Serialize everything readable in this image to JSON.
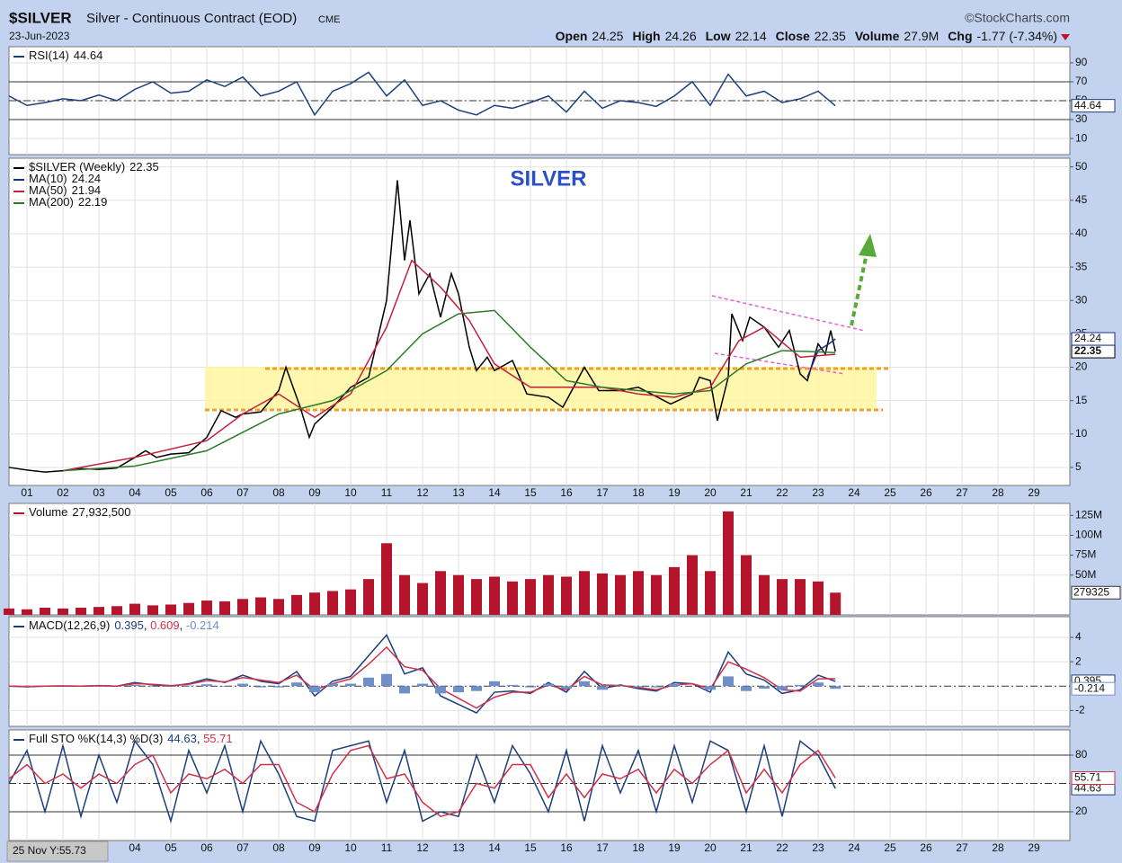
{
  "header": {
    "symbol": "$SILVER",
    "name": "Silver - Continuous Contract (EOD)",
    "exchange": "CME",
    "date": "23-Jun-2023",
    "source": "©StockCharts.com",
    "quote": [
      {
        "label": "Open",
        "value": "24.25"
      },
      {
        "label": "High",
        "value": "24.26"
      },
      {
        "label": "Low",
        "value": "22.14"
      },
      {
        "label": "Close",
        "value": "22.35"
      },
      {
        "label": "Volume",
        "value": "27.9M"
      },
      {
        "label": "Chg",
        "value": "-1.77 (-7.34%)"
      }
    ]
  },
  "tooltip": "25 Nov Y:55.73",
  "chart_data": [
    {
      "type": "line",
      "ylim": [
        -7,
        107
      ],
      "yticks": [
        10,
        30,
        50,
        70,
        90
      ],
      "ref_lines": [
        30,
        70
      ],
      "mid_line": 50,
      "x": [
        2000.5,
        2001,
        2001.5,
        2002,
        2002.5,
        2003,
        2003.5,
        2004,
        2004.5,
        2005,
        2005.5,
        2006,
        2006.5,
        2007,
        2007.5,
        2008,
        2008.5,
        2009,
        2009.5,
        2010,
        2010.5,
        2011,
        2011.5,
        2012,
        2012.5,
        2013,
        2013.5,
        2014,
        2014.5,
        2015,
        2015.5,
        2016,
        2016.5,
        2017,
        2017.5,
        2018,
        2018.5,
        2019,
        2019.5,
        2020,
        2020.5,
        2021,
        2021.5,
        2022,
        2022.5,
        2023,
        2023.48
      ],
      "series": [
        {
          "name": "RSI(14)",
          "color": "#1c3f7c",
          "tag": true,
          "values": [
            55,
            45,
            48,
            52,
            50,
            56,
            50,
            62,
            70,
            58,
            60,
            72,
            65,
            75,
            55,
            60,
            70,
            35,
            60,
            68,
            80,
            55,
            72,
            45,
            50,
            40,
            35,
            45,
            42,
            48,
            55,
            38,
            60,
            42,
            50,
            48,
            44,
            55,
            70,
            45,
            78,
            55,
            60,
            48,
            52,
            60,
            44.64
          ]
        }
      ]
    },
    {
      "type": "line",
      "title": "SILVER",
      "xlim": [
        2000.5,
        2030
      ],
      "ylim": [
        2.3,
        51.3
      ],
      "yticks": [
        5,
        10,
        15,
        20,
        25,
        30,
        35,
        40,
        45,
        50
      ],
      "xticks": [
        {
          "value": 2001,
          "label": "01"
        },
        {
          "value": 2002,
          "label": "02"
        },
        {
          "value": 2003,
          "label": "03"
        },
        {
          "value": 2004,
          "label": "04"
        },
        {
          "value": 2005,
          "label": "05"
        },
        {
          "value": 2006,
          "label": "06"
        },
        {
          "value": 2007,
          "label": "07"
        },
        {
          "value": 2008,
          "label": "08"
        },
        {
          "value": 2009,
          "label": "09"
        },
        {
          "value": 2010,
          "label": "10"
        },
        {
          "value": 2011,
          "label": "11"
        },
        {
          "value": 2012,
          "label": "12"
        },
        {
          "value": 2013,
          "label": "13"
        },
        {
          "value": 2014,
          "label": "14"
        },
        {
          "value": 2015,
          "label": "15"
        },
        {
          "value": 2016,
          "label": "16"
        },
        {
          "value": 2017,
          "label": "17"
        },
        {
          "value": 2018,
          "label": "18"
        },
        {
          "value": 2019,
          "label": "19"
        },
        {
          "value": 2020,
          "label": "20"
        },
        {
          "value": 2021,
          "label": "21"
        },
        {
          "value": 2022,
          "label": "22"
        },
        {
          "value": 2023,
          "label": "23"
        },
        {
          "value": 2024,
          "label": "24"
        },
        {
          "value": 2025,
          "label": "25"
        },
        {
          "value": 2026,
          "label": "26"
        },
        {
          "value": 2027,
          "label": "27"
        },
        {
          "value": 2028,
          "label": "28"
        },
        {
          "value": 2029,
          "label": "29"
        }
      ],
      "series": [
        {
          "name": "$SILVER (Weekly)",
          "color": "#000000",
          "tag": true,
          "bold": true,
          "x": [
            2000.5,
            2001,
            2001.5,
            2002,
            2002.5,
            2003,
            2003.5,
            2004,
            2004.3,
            2004.6,
            2005,
            2005.5,
            2006,
            2006.4,
            2006.8,
            2007,
            2007.5,
            2008,
            2008.2,
            2008.6,
            2008.85,
            2009,
            2009.5,
            2010,
            2010.5,
            2011,
            2011.3,
            2011.5,
            2011.65,
            2011.9,
            2012.2,
            2012.5,
            2012.8,
            2013,
            2013.3,
            2013.5,
            2013.8,
            2014,
            2014.5,
            2014.9,
            2015.5,
            2015.9,
            2016.5,
            2016.9,
            2017.5,
            2018,
            2018.9,
            2019.5,
            2019.7,
            2020,
            2020.2,
            2020.5,
            2020.6,
            2020.9,
            2021.1,
            2021.5,
            2021.9,
            2022.2,
            2022.5,
            2022.7,
            2023,
            2023.2,
            2023.35,
            2023.48
          ],
          "values": [
            5.0,
            4.6,
            4.3,
            4.5,
            4.8,
            4.7,
            4.9,
            6.5,
            7.5,
            6.5,
            7.0,
            7.2,
            9.5,
            13.5,
            12.5,
            13.0,
            13.3,
            16.5,
            20.0,
            14.0,
            9.5,
            11.5,
            14.0,
            17.0,
            18.5,
            30.0,
            48.0,
            36.0,
            42.0,
            31.0,
            34.0,
            27.5,
            34.0,
            31.0,
            23.0,
            19.5,
            21.5,
            19.5,
            21.0,
            16.0,
            15.5,
            14.0,
            20.0,
            16.5,
            16.5,
            17.0,
            14.5,
            16.0,
            18.5,
            18.0,
            12.0,
            18.5,
            28.0,
            24.0,
            27.5,
            26.0,
            23.0,
            25.5,
            19.0,
            18.0,
            23.5,
            22.0,
            25.5,
            22.35
          ]
        },
        {
          "name": "MA(10)",
          "color": "#1a2d8c",
          "tag": true,
          "x": [
            2022.7,
            2023,
            2023.3,
            2023.48
          ],
          "values": [
            18.5,
            22.5,
            23.5,
            24.24
          ]
        },
        {
          "name": "MA(50)",
          "color": "#c4203c",
          "x": [
            2002,
            2004,
            2006,
            2007,
            2008,
            2009,
            2010,
            2011,
            2011.7,
            2012.5,
            2013.3,
            2014,
            2015,
            2016,
            2017,
            2018,
            2019,
            2020,
            2020.8,
            2021.5,
            2022.5,
            2023.48
          ],
          "values": [
            4.5,
            6.5,
            9.0,
            13.0,
            16.0,
            12.5,
            16.0,
            26,
            36,
            32,
            27,
            20.5,
            17,
            17,
            17,
            16,
            15.5,
            17,
            24,
            26,
            21.5,
            21.94
          ]
        },
        {
          "name": "MA(200)",
          "color": "#2e7a2a",
          "x": [
            2002,
            2004,
            2006,
            2008,
            2009.5,
            2011,
            2012,
            2013,
            2014,
            2015,
            2016,
            2017,
            2019,
            2020,
            2021,
            2022,
            2023.48
          ],
          "values": [
            4.5,
            5.2,
            7.5,
            13.0,
            15.0,
            19.5,
            25.0,
            28.0,
            28.5,
            23.0,
            18.0,
            17.0,
            16.0,
            16.5,
            20.5,
            22.5,
            22.19
          ]
        }
      ]
    },
    {
      "type": "bar",
      "ylim": [
        0,
        140000000
      ],
      "tag_label": "279325",
      "yticks": [
        {
          "value": 50000000,
          "label": "50M"
        },
        {
          "value": 75000000,
          "label": "75M"
        },
        {
          "value": 100000000,
          "label": "100M"
        },
        {
          "value": 125000000,
          "label": "125M"
        }
      ],
      "x": [
        2000.5,
        2001,
        2001.5,
        2002,
        2002.5,
        2003,
        2003.5,
        2004,
        2004.5,
        2005,
        2005.5,
        2006,
        2006.5,
        2007,
        2007.5,
        2008,
        2008.5,
        2009,
        2009.5,
        2010,
        2010.5,
        2011,
        2011.5,
        2012,
        2012.5,
        2013,
        2013.5,
        2014,
        2014.5,
        2015,
        2015.5,
        2016,
        2016.5,
        2017,
        2017.5,
        2018,
        2018.5,
        2019,
        2019.5,
        2020,
        2020.5,
        2021,
        2021.5,
        2022,
        2022.5,
        2023,
        2023.48
      ],
      "series": [
        {
          "name": "Volume",
          "color": "#b5142d",
          "current_label": "27,932,500",
          "values": [
            8000000,
            7000000,
            9000000,
            8000000,
            9000000,
            10000000,
            11000000,
            14000000,
            12000000,
            13000000,
            15000000,
            18000000,
            17000000,
            20000000,
            22000000,
            20000000,
            25000000,
            28000000,
            30000000,
            32000000,
            45000000,
            90000000,
            50000000,
            40000000,
            55000000,
            50000000,
            45000000,
            48000000,
            42000000,
            45000000,
            50000000,
            48000000,
            55000000,
            52000000,
            50000000,
            55000000,
            50000000,
            60000000,
            75000000,
            55000000,
            130000000,
            75000000,
            50000000,
            45000000,
            45000000,
            42000000,
            27932500
          ]
        }
      ]
    },
    {
      "type": "line",
      "label": "MACD(12,26,9)",
      "separator": ", ",
      "ylim": [
        -3.3,
        5.7
      ],
      "yticks": [
        -2,
        2,
        4
      ],
      "mid_line": 0,
      "x": [
        2000.5,
        2001,
        2001.5,
        2002,
        2002.5,
        2003,
        2003.5,
        2004,
        2004.5,
        2005,
        2005.5,
        2006,
        2006.5,
        2007,
        2007.5,
        2008,
        2008.5,
        2009,
        2009.5,
        2010,
        2010.5,
        2011,
        2011.5,
        2012,
        2012.5,
        2013,
        2013.5,
        2014,
        2014.5,
        2015,
        2015.5,
        2016,
        2016.5,
        2017,
        2017.5,
        2018,
        2018.5,
        2019,
        2019.5,
        2020,
        2020.5,
        2021,
        2021.5,
        2022,
        2022.5,
        2023,
        2023.48
      ],
      "series": [
        {
          "color": "#1c3f7c",
          "tag": true,
          "values": [
            0,
            -0.05,
            0,
            0.02,
            0,
            0.05,
            0,
            0.3,
            0.1,
            0,
            0.2,
            0.6,
            0.3,
            0.9,
            0.4,
            0.2,
            1.2,
            -0.8,
            0.4,
            0.8,
            2.5,
            4.2,
            1.0,
            1.5,
            -0.8,
            -1.5,
            -2.2,
            -0.5,
            -0.4,
            -0.6,
            0.3,
            -0.5,
            1.2,
            -0.2,
            0.1,
            -0.2,
            -0.4,
            0.3,
            0.2,
            -0.5,
            2.8,
            1.0,
            0.5,
            -0.6,
            -0.3,
            0.9,
            0.395
          ]
        },
        {
          "color": "#d0304a",
          "values": [
            0,
            -0.03,
            0,
            0.01,
            0,
            0.03,
            0,
            0.2,
            0.15,
            0.05,
            0.15,
            0.45,
            0.35,
            0.7,
            0.5,
            0.3,
            0.9,
            -0.3,
            0.2,
            0.6,
            1.8,
            3.2,
            1.6,
            1.3,
            -0.2,
            -1.0,
            -1.8,
            -0.9,
            -0.5,
            -0.5,
            0.1,
            -0.3,
            0.8,
            0.1,
            0.05,
            -0.1,
            -0.3,
            0.1,
            0.2,
            -0.2,
            2.0,
            1.4,
            0.7,
            -0.3,
            -0.4,
            0.6,
            0.609
          ]
        },
        {
          "color": "#6f8fc8",
          "style": "bar",
          "tag": true,
          "values": [
            0,
            -0.02,
            0,
            0.01,
            0,
            0.02,
            0,
            0.1,
            -0.05,
            -0.05,
            0.05,
            0.15,
            -0.05,
            0.2,
            -0.1,
            -0.1,
            0.3,
            -0.5,
            0.2,
            0.2,
            0.7,
            1.0,
            -0.6,
            0.2,
            -0.6,
            -0.5,
            -0.4,
            0.4,
            0.1,
            -0.1,
            0.2,
            -0.2,
            0.4,
            -0.3,
            0.05,
            -0.1,
            -0.1,
            0.2,
            0,
            -0.3,
            0.8,
            -0.4,
            -0.2,
            -0.3,
            0.1,
            0.3,
            -0.214
          ]
        }
      ]
    },
    {
      "type": "line",
      "label": "Full STO %K(14,3) %D(3)",
      "separator": ", ",
      "ylim": [
        -10.5,
        106.7
      ],
      "yticks": [
        20,
        80
      ],
      "ref_lines": [
        20,
        80
      ],
      "mid_line": 50,
      "x": [
        2000.5,
        2001,
        2001.5,
        2002,
        2002.5,
        2003,
        2003.5,
        2004,
        2004.5,
        2005,
        2005.5,
        2006,
        2006.5,
        2007,
        2007.5,
        2008,
        2008.5,
        2009,
        2009.5,
        2010,
        2010.5,
        2011,
        2011.5,
        2012,
        2012.5,
        2013,
        2013.5,
        2014,
        2014.5,
        2015,
        2015.5,
        2016,
        2016.5,
        2017,
        2017.5,
        2018,
        2018.5,
        2019,
        2019.5,
        2020,
        2020.5,
        2021,
        2021.5,
        2022,
        2022.5,
        2023,
        2023.48
      ],
      "series": [
        {
          "color": "#1c3f7c",
          "tag": true,
          "values": [
            50,
            85,
            20,
            90,
            15,
            80,
            30,
            95,
            70,
            10,
            85,
            40,
            90,
            20,
            95,
            60,
            15,
            10,
            85,
            90,
            95,
            30,
            85,
            10,
            20,
            15,
            80,
            30,
            90,
            60,
            20,
            85,
            10,
            90,
            40,
            85,
            20,
            90,
            30,
            95,
            85,
            20,
            90,
            15,
            95,
            80,
            44.63
          ]
        },
        {
          "color": "#d0304a",
          "tag": true,
          "values": [
            55,
            70,
            50,
            60,
            45,
            60,
            50,
            70,
            80,
            40,
            60,
            55,
            65,
            50,
            70,
            70,
            30,
            20,
            60,
            85,
            90,
            55,
            60,
            30,
            15,
            20,
            50,
            45,
            70,
            70,
            35,
            60,
            35,
            60,
            55,
            65,
            40,
            65,
            50,
            70,
            85,
            40,
            65,
            40,
            70,
            85,
            55.71
          ]
        }
      ]
    }
  ]
}
